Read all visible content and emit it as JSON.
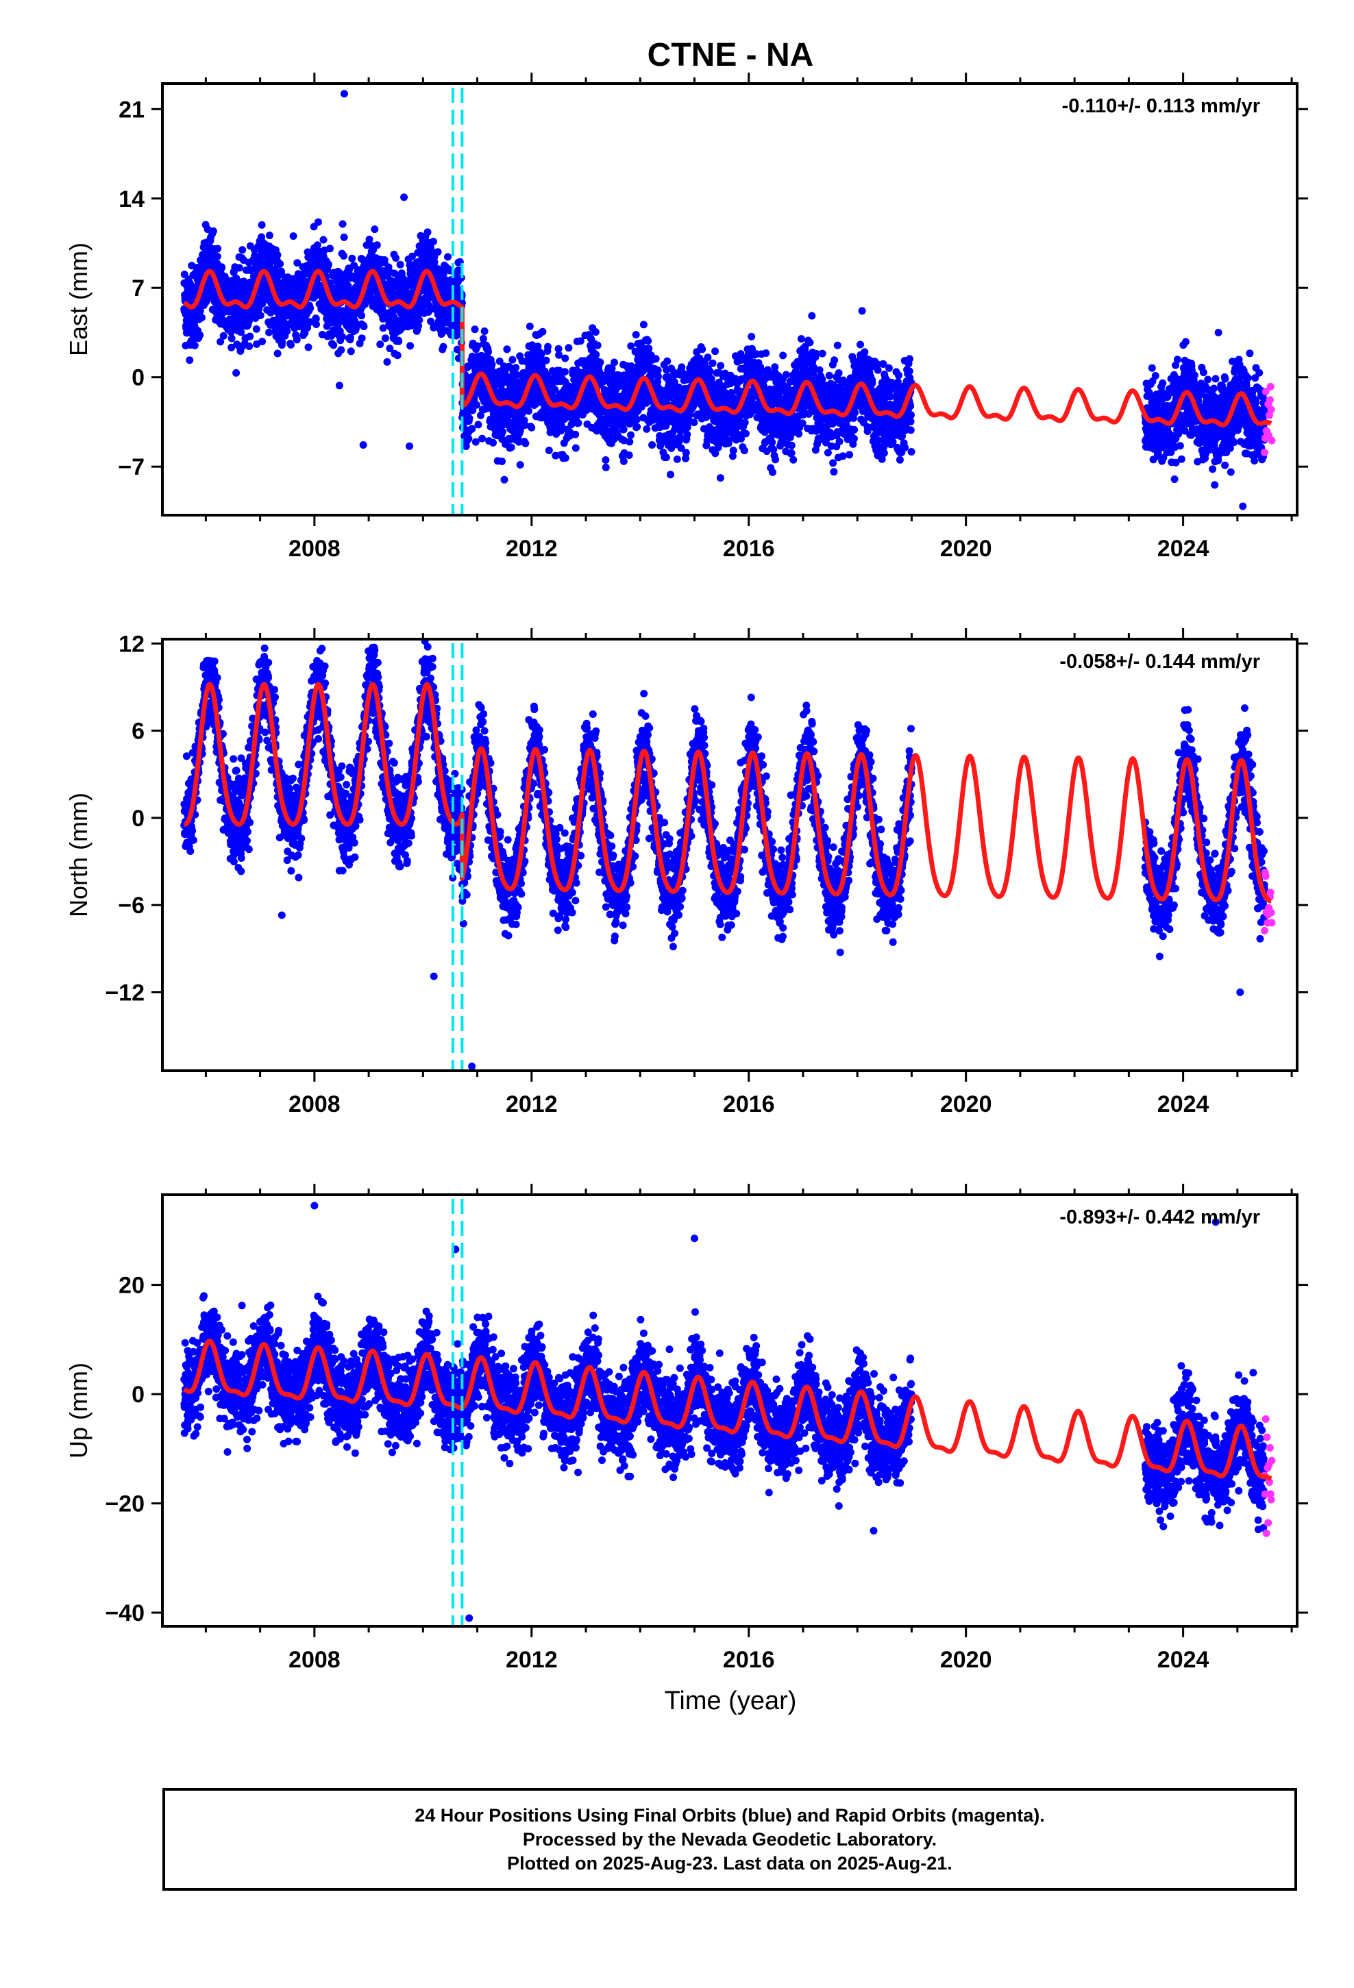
{
  "title": "CTNE - NA",
  "xlabel": "Time (year)",
  "colors": {
    "final": "#0000ff",
    "rapid": "#ff33ff",
    "model": "#ff1a1a",
    "offset": "#00e5ee"
  },
  "footer": {
    "line1": "24 Hour Positions Using Final Orbits (blue) and Rapid Orbits (magenta).",
    "line2": "Processed by the Nevada Geodetic Laboratory.",
    "line3": "Plotted on 2025-Aug-23. Last data on 2025-Aug-21."
  },
  "chart_data": [
    {
      "type": "scatter",
      "ylabel": "East (mm)",
      "rate_text": "-0.110+/- 0.113 mm/yr",
      "xlim": [
        2005.2,
        2026.1
      ],
      "ylim": [
        -10.8,
        23
      ],
      "yticks": [
        21,
        14,
        7,
        0,
        -7
      ],
      "xticks": [
        2008,
        2012,
        2016,
        2020,
        2024
      ],
      "offset_lines": [
        2010.55,
        2010.72
      ],
      "final_segments": [
        [
          2005.6,
          2019.0
        ],
        [
          2023.3,
          2025.5
        ]
      ],
      "rapid_range": [
        2025.5,
        2025.64
      ],
      "model": {
        "segments": [
          {
            "x_start": 2005.6,
            "x_end": 2010.72,
            "offset": 6.5,
            "rate": 0.0,
            "amp_annual": 1.2,
            "amp_semi": 0.6
          },
          {
            "x_start": 2010.72,
            "x_end": 2025.62,
            "offset": -1.3,
            "rate": -0.11,
            "amp_annual": 1.1,
            "amp_semi": 0.5
          }
        ]
      },
      "scatter_noise": 1.6,
      "outliers": [
        [
          2008.55,
          22.2
        ],
        [
          2008.52,
          12.0
        ],
        [
          2009.65,
          14.1
        ],
        [
          2009.75,
          -5.4
        ],
        [
          2008.9,
          -5.3
        ],
        [
          2025.1,
          -10.1
        ],
        [
          2024.65,
          3.5
        ]
      ]
    },
    {
      "type": "scatter",
      "ylabel": "North (mm)",
      "rate_text": "-0.058+/- 0.144 mm/yr",
      "xlim": [
        2005.2,
        2026.1
      ],
      "ylim": [
        -17.4,
        12.3
      ],
      "yticks": [
        12,
        6,
        0,
        -6,
        -12
      ],
      "xticks": [
        2008,
        2012,
        2016,
        2020,
        2024
      ],
      "offset_lines": [
        2010.55,
        2010.72
      ],
      "final_segments": [
        [
          2005.6,
          2019.0
        ],
        [
          2023.3,
          2025.5
        ]
      ],
      "rapid_range": [
        2025.5,
        2025.64
      ],
      "model": {
        "segments": [
          {
            "x_start": 2005.6,
            "x_end": 2010.72,
            "offset": 3.6,
            "rate": 0.0,
            "amp_annual": 4.8,
            "amp_semi": 0.8
          },
          {
            "x_start": 2010.72,
            "x_end": 2025.62,
            "offset": -0.8,
            "rate": -0.058,
            "amp_annual": 4.8,
            "amp_semi": 0.8
          }
        ]
      },
      "scatter_noise": 1.4,
      "outliers": [
        [
          2007.4,
          -6.7
        ],
        [
          2010.2,
          -10.9
        ],
        [
          2010.9,
          -17.1
        ],
        [
          2025.05,
          -12.0
        ]
      ]
    },
    {
      "type": "scatter",
      "ylabel": "Up (mm)",
      "rate_text": "-0.893+/- 0.442 mm/yr",
      "xlim": [
        2005.2,
        2026.1
      ],
      "ylim": [
        -42.5,
        36.5
      ],
      "yticks": [
        20,
        0,
        -20,
        -40
      ],
      "xticks": [
        2008,
        2012,
        2016,
        2020,
        2024
      ],
      "offset_lines": [
        2010.55,
        2010.72
      ],
      "final_segments": [
        [
          2005.6,
          2019.0
        ],
        [
          2023.3,
          2025.5
        ]
      ],
      "rapid_range": [
        2025.5,
        2025.64
      ],
      "model": {
        "segments": [
          {
            "x_start": 2005.6,
            "x_end": 2010.72,
            "offset": 4.0,
            "rate": -0.6,
            "amp_annual": 4.5,
            "amp_semi": 1.5
          },
          {
            "x_start": 2010.72,
            "x_end": 2025.62,
            "offset": 1.0,
            "rate": -0.893,
            "amp_annual": 4.5,
            "amp_semi": 1.5
          }
        ]
      },
      "scatter_noise": 3.8,
      "outliers": [
        [
          2008.0,
          34.5
        ],
        [
          2010.6,
          26.5
        ],
        [
          2015.0,
          28.5
        ],
        [
          2010.85,
          -41.0
        ],
        [
          2018.3,
          -25.0
        ],
        [
          2024.6,
          31.5
        ]
      ]
    }
  ]
}
